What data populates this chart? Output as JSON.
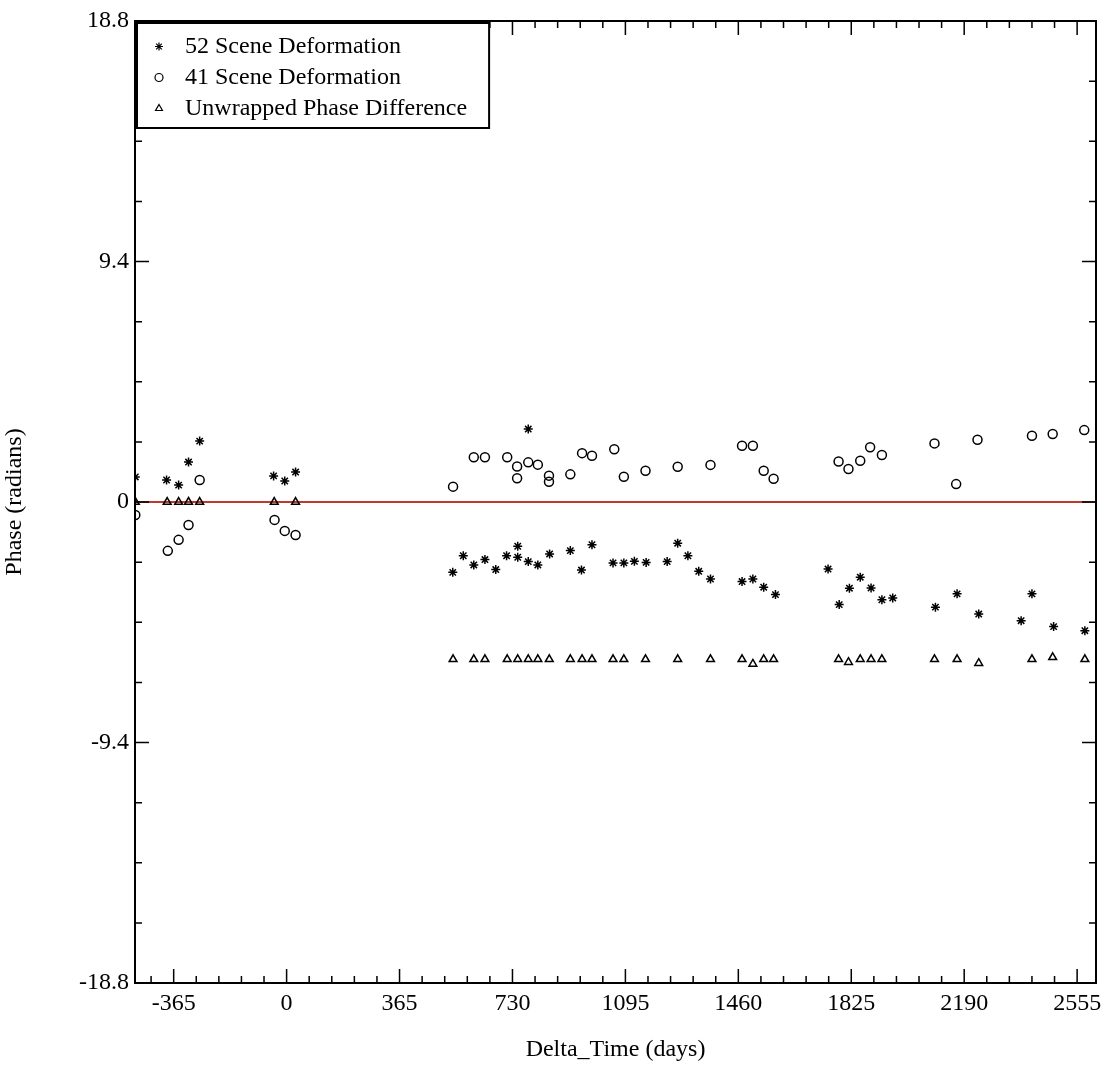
{
  "chart_data": {
    "type": "scatter",
    "xlabel": "Delta_Time (days)",
    "ylabel": "Phase (radians)",
    "legend": "top left",
    "grid": false,
    "xlim": [
      -490,
      2616
    ],
    "ylim": [
      -18.8,
      18.8
    ],
    "xticks": [
      -365,
      0,
      365,
      730,
      1095,
      1460,
      1825,
      2190,
      2555,
      {
        "value": -438,
        "label": null
      },
      {
        "value": -292,
        "label": null
      },
      {
        "value": -219,
        "label": null
      },
      {
        "value": -146,
        "label": null
      },
      {
        "value": -73,
        "label": null
      },
      {
        "value": 73,
        "label": null
      },
      {
        "value": 146,
        "label": null
      },
      {
        "value": 219,
        "label": null
      },
      {
        "value": 292,
        "label": null
      },
      {
        "value": 438,
        "label": null
      },
      {
        "value": 511,
        "label": null
      },
      {
        "value": 584,
        "label": null
      },
      {
        "value": 657,
        "label": null
      },
      {
        "value": 803,
        "label": null
      },
      {
        "value": 876,
        "label": null
      },
      {
        "value": 949,
        "label": null
      },
      {
        "value": 1022,
        "label": null
      },
      {
        "value": 1168,
        "label": null
      },
      {
        "value": 1241,
        "label": null
      },
      {
        "value": 1314,
        "label": null
      },
      {
        "value": 1387,
        "label": null
      },
      {
        "value": 1533,
        "label": null
      },
      {
        "value": 1606,
        "label": null
      },
      {
        "value": 1679,
        "label": null
      },
      {
        "value": 1752,
        "label": null
      },
      {
        "value": 1898,
        "label": null
      },
      {
        "value": 1971,
        "label": null
      },
      {
        "value": 2044,
        "label": null
      },
      {
        "value": 2117,
        "label": null
      },
      {
        "value": 2263,
        "label": null
      },
      {
        "value": 2336,
        "label": null
      },
      {
        "value": 2409,
        "label": null
      },
      {
        "value": 2482,
        "label": null
      }
    ],
    "yticks": [
      -18.8,
      -9.4,
      0,
      9.4,
      18.8,
      {
        "value": -16.45,
        "label": null
      },
      {
        "value": -14.1,
        "label": null
      },
      {
        "value": -11.75,
        "label": null
      },
      {
        "value": -7.05,
        "label": null
      },
      {
        "value": -4.7,
        "label": null
      },
      {
        "value": -2.35,
        "label": null
      },
      {
        "value": 2.35,
        "label": null
      },
      {
        "value": 4.7,
        "label": null
      },
      {
        "value": 7.05,
        "label": null
      },
      {
        "value": 11.75,
        "label": null
      },
      {
        "value": 14.1,
        "label": null
      },
      {
        "value": 16.45,
        "label": null
      }
    ],
    "ref_lines": [
      {
        "axis": "y",
        "value": 0,
        "color": "#c0392b"
      }
    ],
    "series": [
      {
        "name": "52 Scene Deformation",
        "marker": "cross",
        "color": "#000000",
        "x": [
          -489,
          -388,
          -349,
          -317,
          -281,
          -42,
          -6,
          29,
          537,
          571,
          605,
          641,
          676,
          711,
          747,
          747,
          781,
          781,
          812,
          850,
          917,
          953,
          987,
          1055,
          1090,
          1124,
          1162,
          1230,
          1264,
          1297,
          1332,
          1370,
          1472,
          1507,
          1542,
          1580,
          1750,
          1786,
          1819,
          1854,
          1889,
          1924,
          1959,
          2097,
          2167,
          2237,
          2374,
          2409,
          2479,
          2580
        ],
        "values": [
          0.98,
          0.86,
          0.66,
          1.56,
          2.38,
          1.02,
          0.82,
          1.17,
          -2.75,
          -2.1,
          -2.46,
          -2.25,
          -2.64,
          -2.1,
          -1.73,
          -2.16,
          2.85,
          -2.33,
          -2.46,
          -2.03,
          -1.9,
          -2.66,
          -1.67,
          -2.38,
          -2.38,
          -2.32,
          -2.36,
          -2.33,
          -1.61,
          -2.1,
          -2.71,
          -3.01,
          -3.11,
          -3.01,
          -3.33,
          -3.62,
          -2.62,
          -4.01,
          -3.37,
          -2.94,
          -3.36,
          -3.82,
          -3.75,
          -4.11,
          -3.59,
          -4.38,
          -4.64,
          -3.59,
          -4.87,
          -5.03
        ]
      },
      {
        "name": "41 Scene Deformation",
        "marker": "circle",
        "color": "#000000",
        "x": [
          -489,
          -384,
          -349,
          -317,
          -281,
          -39,
          -6,
          29,
          538,
          605,
          641,
          713,
          745,
          745,
          781,
          812,
          848,
          848,
          917,
          955,
          987,
          1059,
          1090,
          1160,
          1264,
          1370,
          1472,
          1507,
          1542,
          1574,
          1784,
          1816,
          1854,
          1886,
          1924,
          2094,
          2164,
          2233,
          2409,
          2476,
          2578
        ],
        "values": [
          -0.51,
          -1.91,
          -1.48,
          -0.9,
          0.86,
          -0.7,
          -1.13,
          -1.29,
          0.6,
          1.75,
          1.75,
          1.75,
          1.39,
          0.93,
          1.55,
          1.46,
          1.03,
          0.79,
          1.08,
          1.91,
          1.81,
          2.06,
          0.99,
          1.22,
          1.38,
          1.45,
          2.2,
          2.2,
          1.22,
          0.91,
          1.58,
          1.29,
          1.61,
          2.14,
          1.84,
          2.29,
          0.7,
          2.43,
          2.59,
          2.66,
          2.81
        ]
      },
      {
        "name": "Unwrapped Phase Difference",
        "marker": "triangle",
        "color": "#000000",
        "x": [
          -489,
          -386,
          -349,
          -317,
          -281,
          -40,
          29,
          538,
          605,
          641,
          713,
          747,
          781,
          812,
          849,
          917,
          955,
          987,
          1055,
          1090,
          1160,
          1264,
          1370,
          1472,
          1507,
          1542,
          1574,
          1784,
          1816,
          1854,
          1889,
          1924,
          2094,
          2167,
          2237,
          2409,
          2476,
          2580
        ],
        "values": [
          0,
          0,
          0,
          0,
          0,
          0,
          0,
          -6.15,
          -6.15,
          -6.15,
          -6.15,
          -6.15,
          -6.15,
          -6.15,
          -6.15,
          -6.15,
          -6.15,
          -6.15,
          -6.15,
          -6.15,
          -6.15,
          -6.15,
          -6.15,
          -6.15,
          -6.33,
          -6.15,
          -6.15,
          -6.15,
          -6.26,
          -6.15,
          -6.15,
          -6.15,
          -6.15,
          -6.15,
          -6.3,
          -6.15,
          -6.07,
          -6.15
        ]
      }
    ]
  }
}
